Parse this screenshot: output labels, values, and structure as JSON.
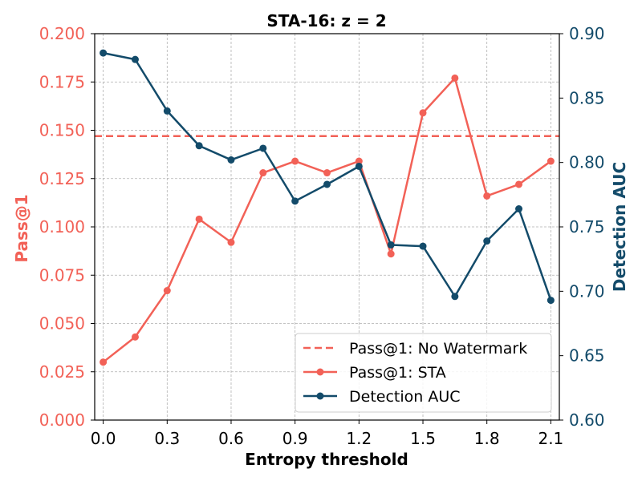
{
  "chart_data": {
    "type": "line",
    "title": "STA-16: z = 2",
    "xlabel": "Entropy threshold",
    "ylabel_left": "Pass@1",
    "ylabel_right": "Detection AUC",
    "xlim": [
      -0.04,
      2.14
    ],
    "ylim_left": [
      0.0,
      0.2
    ],
    "ylim_right": [
      0.6,
      0.9
    ],
    "x_ticks": [
      "0.0",
      "0.3",
      "0.6",
      "0.9",
      "1.2",
      "1.5",
      "1.8",
      "2.1"
    ],
    "y_left_ticks": [
      "0.000",
      "0.025",
      "0.050",
      "0.075",
      "0.100",
      "0.125",
      "0.150",
      "0.175",
      "0.200"
    ],
    "y_right_ticks": [
      "0.60",
      "0.65",
      "0.70",
      "0.75",
      "0.80",
      "0.85",
      "0.90"
    ],
    "grid": true,
    "legend_position": "bottom-right",
    "x": [
      0.0,
      0.15,
      0.3,
      0.45,
      0.6,
      0.75,
      0.9,
      1.05,
      1.2,
      1.35,
      1.5,
      1.65,
      1.8,
      1.95,
      2.1
    ],
    "series": [
      {
        "name": "Pass@1: No Watermark",
        "axis": "left",
        "style": "dashed",
        "color": "#f26157",
        "constant": 0.147
      },
      {
        "name": "Pass@1: STA",
        "axis": "left",
        "style": "line-marker",
        "color": "#f26157",
        "values": [
          0.03,
          0.043,
          0.067,
          0.104,
          0.092,
          0.128,
          0.134,
          0.128,
          0.134,
          0.086,
          0.159,
          0.177,
          0.116,
          0.122,
          0.134
        ]
      },
      {
        "name": "Detection AUC",
        "axis": "right",
        "style": "line-marker",
        "color": "#134b6a",
        "values": [
          0.885,
          0.88,
          0.84,
          0.813,
          0.802,
          0.811,
          0.77,
          0.783,
          0.797,
          0.736,
          0.735,
          0.696,
          0.739,
          0.764,
          0.693
        ]
      }
    ]
  }
}
